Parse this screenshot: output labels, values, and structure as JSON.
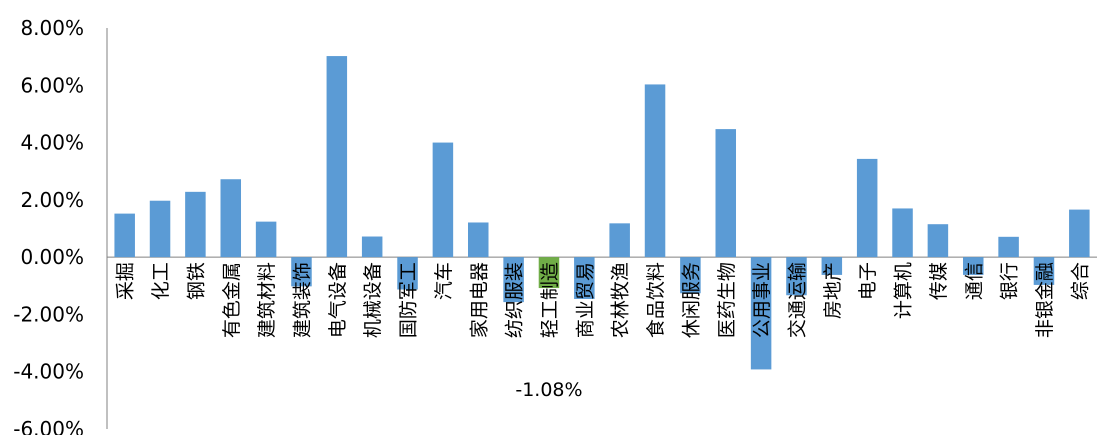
{
  "chart_data": {
    "type": "bar",
    "categories": [
      "采掘",
      "化工",
      "钢铁",
      "有色金属",
      "建筑材料",
      "建筑装饰",
      "电气设备",
      "机械设备",
      "国防军工",
      "汽车",
      "家用电器",
      "纺织服装",
      "轻工制造",
      "商业贸易",
      "农林牧渔",
      "食品饮料",
      "休闲服务",
      "医药生物",
      "公用事业",
      "交通运输",
      "房地产",
      "电子",
      "计算机",
      "传媒",
      "通信",
      "银行",
      "非银金融",
      "综合"
    ],
    "values": [
      1.52,
      1.97,
      2.28,
      2.72,
      1.24,
      -1.02,
      7.02,
      0.72,
      -1.13,
      4.0,
      1.21,
      -1.57,
      -1.08,
      -1.46,
      1.18,
      6.03,
      -1.26,
      4.47,
      -3.92,
      -1.33,
      -0.62,
      3.43,
      1.7,
      1.15,
      -0.62,
      0.71,
      -0.97,
      1.66
    ],
    "colors": {
      "default": "#5b9bd5",
      "highlight": "#70ad47"
    },
    "highlight_index": 12,
    "annotation": {
      "text": "-1.08%",
      "category_index": 12
    },
    "ylim": [
      -6,
      8
    ],
    "yticks": [
      "8.00%",
      "6.00%",
      "4.00%",
      "2.00%",
      "0.00%",
      "-2.00%",
      "-4.00%",
      "-6.00%"
    ],
    "grid": false,
    "legend": "none"
  }
}
